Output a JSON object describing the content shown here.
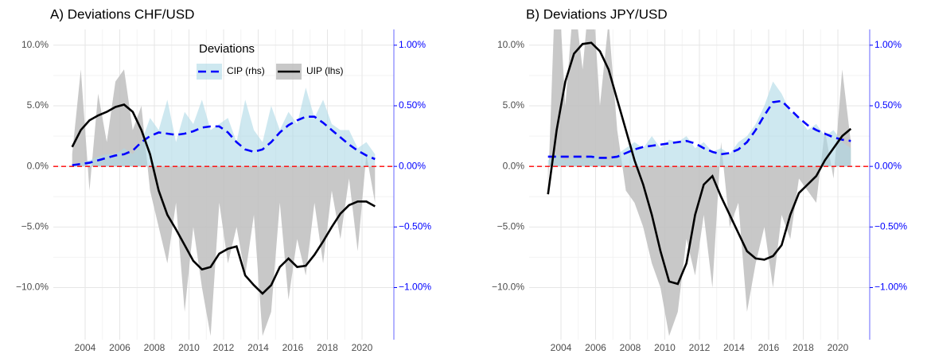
{
  "chart_data": [
    {
      "type": "area",
      "title": "A) Deviations CHF/USD",
      "legend_title": "Deviations",
      "legend": "top",
      "x": [
        2003.25,
        2003.75,
        2004.25,
        2004.75,
        2005.25,
        2005.75,
        2006.25,
        2006.75,
        2007.25,
        2007.75,
        2008.25,
        2008.75,
        2009.25,
        2009.75,
        2010.25,
        2010.75,
        2011.25,
        2011.75,
        2012.25,
        2012.75,
        2013.25,
        2013.75,
        2014.25,
        2014.75,
        2015.25,
        2015.75,
        2016.25,
        2016.75,
        2017.25,
        2017.75,
        2018.25,
        2018.75,
        2019.25,
        2019.75,
        2020.25,
        2020.75
      ],
      "xlim": [
        2002.16,
        2021.84
      ],
      "xticks": [
        2004,
        2006,
        2008,
        2010,
        2012,
        2014,
        2016,
        2018,
        2020
      ],
      "ylim": [
        -14.3,
        11.3
      ],
      "yticks": [
        {
          "value": -10,
          "label": "−10.0%"
        },
        {
          "value": -5,
          "label": "−5.0%"
        },
        {
          "value": 0,
          "label": "0.0%"
        },
        {
          "value": 5,
          "label": "5.0%"
        },
        {
          "value": 10,
          "label": "10.0%"
        }
      ],
      "y2lim": [
        -1.43,
        1.13
      ],
      "y2ticks": [
        {
          "value": -1,
          "label": "−1.00%"
        },
        {
          "value": -0.5,
          "label": "−0.50%"
        },
        {
          "value": 0,
          "label": "0.00%"
        },
        {
          "value": 0.5,
          "label": "0.50%"
        },
        {
          "value": 1,
          "label": "1.00%"
        }
      ],
      "hline": 0,
      "grid": true,
      "series": [
        {
          "name": "UIP (lhs)",
          "fill": "#bebebe",
          "color": "#000000",
          "values": [
            1,
            8,
            -2,
            6,
            2,
            7,
            8,
            3,
            5,
            -2,
            -5,
            -8,
            -3,
            -12,
            -5,
            -10,
            -14,
            -3,
            -8,
            -5,
            -9,
            -4,
            -14,
            -12,
            -3,
            -11,
            -6,
            -9,
            -3,
            -8,
            -2,
            -6,
            -1,
            -7,
            1,
            -3
          ],
          "trend": [
            1.6,
            3,
            3.8,
            4.2,
            4.5,
            4.9,
            5.1,
            4.5,
            3,
            1,
            -2,
            -4,
            -5.2,
            -6.5,
            -7.8,
            -8.5,
            -8.3,
            -7.2,
            -6.8,
            -6.6,
            -9,
            -9.8,
            -10.5,
            -9.8,
            -8.3,
            -7.6,
            -8.3,
            -8.2,
            -7.3,
            -6.2,
            -5,
            -3.9,
            -3.2,
            -2.9,
            -2.9,
            -3.3
          ]
        },
        {
          "name": "CIP (rhs)",
          "axis": "y2",
          "fill": "#add8e6",
          "color": "#0000ff",
          "values": [
            0.02,
            0.03,
            0.05,
            0.08,
            0.1,
            0.1,
            0.15,
            0.1,
            0.2,
            0.4,
            0.3,
            0.55,
            0.2,
            0.45,
            0.35,
            0.55,
            0.3,
            0.35,
            0.4,
            0.2,
            0.55,
            0.3,
            0.2,
            0.5,
            0.3,
            0.45,
            0.35,
            0.65,
            0.4,
            0.55,
            0.35,
            0.3,
            0.3,
            0.15,
            0.2,
            0.1
          ],
          "trend": [
            0.01,
            0.02,
            0.03,
            0.05,
            0.07,
            0.09,
            0.1,
            0.13,
            0.2,
            0.25,
            0.28,
            0.27,
            0.26,
            0.27,
            0.29,
            0.32,
            0.33,
            0.33,
            0.28,
            0.2,
            0.14,
            0.12,
            0.14,
            0.2,
            0.28,
            0.34,
            0.38,
            0.41,
            0.41,
            0.36,
            0.3,
            0.24,
            0.18,
            0.13,
            0.09,
            0.06
          ]
        }
      ]
    },
    {
      "type": "area",
      "title": "B) Deviations JPY/USD",
      "x": [
        2003.25,
        2003.75,
        2004.25,
        2004.75,
        2005.25,
        2005.75,
        2006.25,
        2006.75,
        2007.25,
        2007.75,
        2008.25,
        2008.75,
        2009.25,
        2009.75,
        2010.25,
        2010.75,
        2011.25,
        2011.75,
        2012.25,
        2012.75,
        2013.25,
        2013.75,
        2014.25,
        2014.75,
        2015.25,
        2015.75,
        2016.25,
        2016.75,
        2017.25,
        2017.75,
        2018.25,
        2018.75,
        2019.25,
        2019.75,
        2020.25,
        2020.75
      ],
      "xlim": [
        2002.16,
        2021.84
      ],
      "xticks": [
        2004,
        2006,
        2008,
        2010,
        2012,
        2014,
        2016,
        2018,
        2020
      ],
      "ylim": [
        -14.3,
        11.3
      ],
      "yticks": [
        {
          "value": -10,
          "label": "−10.0%"
        },
        {
          "value": -5,
          "label": "−5.0%"
        },
        {
          "value": 0,
          "label": "0.0%"
        },
        {
          "value": 5,
          "label": "5.0%"
        },
        {
          "value": 10,
          "label": "10.0%"
        }
      ],
      "y2lim": [
        -1.43,
        1.13
      ],
      "y2ticks": [
        {
          "value": -1,
          "label": "−1.00%"
        },
        {
          "value": -0.5,
          "label": "−0.50%"
        },
        {
          "value": 0,
          "label": "0.00%"
        },
        {
          "value": 0.5,
          "label": "0.50%"
        },
        {
          "value": 1,
          "label": "1.00%"
        }
      ],
      "hline": 0,
      "grid": true,
      "series": [
        {
          "fill": "#bebebe",
          "color": "#000000",
          "values": [
            -2,
            18,
            5,
            14,
            8,
            16,
            5,
            12,
            3,
            -2,
            -3,
            -5,
            -8,
            -10,
            -14,
            -12,
            -6,
            -9,
            -4,
            -10,
            2,
            -5,
            -3,
            -12,
            -8,
            -5,
            -10,
            -4,
            -6,
            -1,
            -2,
            -3,
            3,
            -1,
            8,
            2
          ],
          "trend": [
            -2.3,
            3,
            7,
            9.3,
            10.1,
            10.2,
            9.5,
            8,
            5.5,
            3,
            0.5,
            -1.5,
            -4,
            -7,
            -9.5,
            -9.7,
            -8,
            -4,
            -1.5,
            -0.8,
            -2.5,
            -4,
            -5.5,
            -7,
            -7.6,
            -7.7,
            -7.4,
            -6.5,
            -4,
            -2.2,
            -1.5,
            -0.8,
            0.5,
            1.5,
            2.5,
            3.1
          ]
        },
        {
          "axis": "y2",
          "fill": "#add8e6",
          "color": "#0000ff",
          "values": [
            0.05,
            0.1,
            0.05,
            0.08,
            0.06,
            0.1,
            0.08,
            0.05,
            0.1,
            0.15,
            0.2,
            0.15,
            0.25,
            0.15,
            0.22,
            0.2,
            0.25,
            0.15,
            0.2,
            0.12,
            0.15,
            0.1,
            0.2,
            0.25,
            0.35,
            0.5,
            0.7,
            0.6,
            0.45,
            0.4,
            0.3,
            0.35,
            0.25,
            0.3,
            0.2,
            0.15
          ],
          "trend": [
            0.08,
            0.08,
            0.08,
            0.08,
            0.08,
            0.08,
            0.07,
            0.07,
            0.08,
            0.11,
            0.14,
            0.16,
            0.17,
            0.18,
            0.19,
            0.2,
            0.21,
            0.19,
            0.15,
            0.12,
            0.1,
            0.11,
            0.14,
            0.2,
            0.3,
            0.42,
            0.53,
            0.54,
            0.47,
            0.4,
            0.34,
            0.3,
            0.27,
            0.24,
            0.22,
            0.21
          ]
        }
      ]
    }
  ]
}
